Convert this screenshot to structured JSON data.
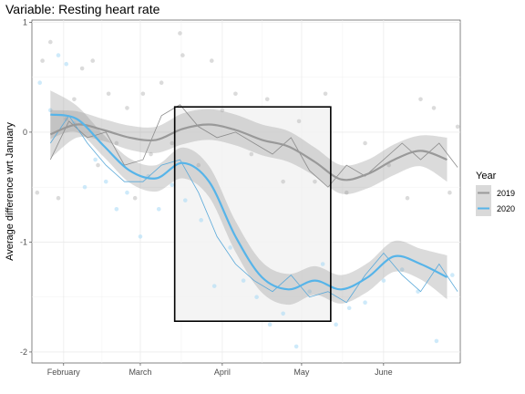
{
  "chart_data": {
    "type": "line",
    "title": "Variable: Resting heart rate",
    "xlabel": "",
    "ylabel": "Average difference wrt January",
    "x_domain": [
      "2020-01-20",
      "2020-06-30"
    ],
    "ylim": [
      -2.1,
      1.02
    ],
    "x_ticks": [
      {
        "date": "2020-02-01",
        "label": "February"
      },
      {
        "date": "2020-03-01",
        "label": "March"
      },
      {
        "date": "2020-04-01",
        "label": "April"
      },
      {
        "date": "2020-05-01",
        "label": "May"
      },
      {
        "date": "2020-06-01",
        "label": "June"
      }
    ],
    "y_ticks": [
      1,
      0,
      -1,
      -2
    ],
    "grid": true,
    "legend": {
      "title": "Year",
      "position": "right"
    },
    "highlight_box": {
      "x_start": "2020-03-14",
      "x_end": "2020-05-12",
      "y_bottom": -1.72,
      "y_top": 0.23
    },
    "series": [
      {
        "name": "2019",
        "color": "#999999",
        "smooth": {
          "dates": [
            "2020-01-27",
            "2020-02-06",
            "2020-02-16",
            "2020-02-26",
            "2020-03-07",
            "2020-03-17",
            "2020-03-27",
            "2020-04-06",
            "2020-04-16",
            "2020-04-26",
            "2020-05-06",
            "2020-05-16",
            "2020-05-26",
            "2020-06-05",
            "2020-06-15",
            "2020-06-25"
          ],
          "values": [
            -0.02,
            0.07,
            0.02,
            -0.05,
            -0.07,
            0.03,
            0.07,
            0.02,
            -0.07,
            -0.13,
            -0.27,
            -0.43,
            -0.38,
            -0.25,
            -0.17,
            -0.25
          ],
          "ci_half": [
            0.22,
            0.12,
            0.1,
            0.11,
            0.12,
            0.14,
            0.14,
            0.14,
            0.14,
            0.14,
            0.13,
            0.13,
            0.13,
            0.14,
            0.14,
            0.2
          ]
        },
        "raw": {
          "dates": [
            "2020-01-27",
            "2020-02-03",
            "2020-02-10",
            "2020-02-17",
            "2020-02-24",
            "2020-03-02",
            "2020-03-09",
            "2020-03-16",
            "2020-03-23",
            "2020-03-30",
            "2020-04-06",
            "2020-04-13",
            "2020-04-20",
            "2020-04-27",
            "2020-05-04",
            "2020-05-11",
            "2020-05-18",
            "2020-05-25",
            "2020-06-01",
            "2020-06-08",
            "2020-06-15",
            "2020-06-22",
            "2020-06-29"
          ],
          "values": [
            -0.25,
            0.1,
            -0.05,
            0.0,
            -0.3,
            -0.25,
            0.15,
            0.25,
            0.05,
            -0.05,
            0.0,
            -0.1,
            -0.2,
            -0.05,
            -0.35,
            -0.5,
            -0.3,
            -0.4,
            -0.25,
            -0.1,
            -0.25,
            -0.1,
            -0.32
          ]
        }
      },
      {
        "name": "2020",
        "color": "#56b4e9",
        "smooth": {
          "dates": [
            "2020-01-27",
            "2020-02-06",
            "2020-02-16",
            "2020-02-26",
            "2020-03-07",
            "2020-03-17",
            "2020-03-27",
            "2020-04-06",
            "2020-04-16",
            "2020-04-26",
            "2020-05-06",
            "2020-05-16",
            "2020-05-26",
            "2020-06-05",
            "2020-06-15",
            "2020-06-25"
          ],
          "values": [
            0.16,
            0.12,
            -0.12,
            -0.35,
            -0.42,
            -0.28,
            -0.45,
            -0.95,
            -1.32,
            -1.43,
            -1.35,
            -1.43,
            -1.32,
            -1.13,
            -1.2,
            -1.32
          ],
          "ci_half": [
            0.22,
            0.12,
            0.1,
            0.11,
            0.12,
            0.14,
            0.14,
            0.14,
            0.14,
            0.14,
            0.13,
            0.13,
            0.13,
            0.14,
            0.14,
            0.2
          ]
        },
        "raw": {
          "dates": [
            "2020-01-27",
            "2020-02-03",
            "2020-02-10",
            "2020-02-17",
            "2020-02-24",
            "2020-03-02",
            "2020-03-09",
            "2020-03-16",
            "2020-03-23",
            "2020-03-30",
            "2020-04-06",
            "2020-04-13",
            "2020-04-20",
            "2020-04-27",
            "2020-05-04",
            "2020-05-11",
            "2020-05-18",
            "2020-05-25",
            "2020-06-01",
            "2020-06-08",
            "2020-06-15",
            "2020-06-22",
            "2020-06-29"
          ],
          "values": [
            -0.1,
            0.15,
            -0.1,
            -0.3,
            -0.45,
            -0.45,
            -0.3,
            -0.25,
            -0.55,
            -0.95,
            -1.2,
            -1.35,
            -1.45,
            -1.3,
            -1.5,
            -1.45,
            -1.55,
            -1.3,
            -1.1,
            -1.3,
            -1.45,
            -1.2,
            -1.45
          ]
        }
      }
    ],
    "points_2019": [
      [
        "2020-01-22",
        -0.55
      ],
      [
        "2020-01-24",
        0.65
      ],
      [
        "2020-01-27",
        0.82
      ],
      [
        "2020-01-30",
        -0.6
      ],
      [
        "2020-02-02",
        0.12
      ],
      [
        "2020-02-05",
        0.3
      ],
      [
        "2020-02-08",
        0.58
      ],
      [
        "2020-02-12",
        0.65
      ],
      [
        "2020-02-14",
        -0.3
      ],
      [
        "2020-02-18",
        0.35
      ],
      [
        "2020-02-21",
        -0.1
      ],
      [
        "2020-02-25",
        0.22
      ],
      [
        "2020-02-28",
        -0.6
      ],
      [
        "2020-03-02",
        0.35
      ],
      [
        "2020-03-05",
        -0.2
      ],
      [
        "2020-03-09",
        0.45
      ],
      [
        "2020-03-13",
        -0.1
      ],
      [
        "2020-03-16",
        0.9
      ],
      [
        "2020-03-17",
        0.7
      ],
      [
        "2020-03-23",
        -0.3
      ],
      [
        "2020-03-28",
        0.65
      ],
      [
        "2020-04-01",
        0.2
      ],
      [
        "2020-04-06",
        0.35
      ],
      [
        "2020-04-12",
        -0.2
      ],
      [
        "2020-04-18",
        0.3
      ],
      [
        "2020-04-24",
        -0.45
      ],
      [
        "2020-04-30",
        0.1
      ],
      [
        "2020-05-06",
        -0.45
      ],
      [
        "2020-05-10",
        0.35
      ],
      [
        "2020-05-18",
        -0.55
      ],
      [
        "2020-05-25",
        -0.1
      ],
      [
        "2020-06-03",
        -0.3
      ],
      [
        "2020-06-10",
        -0.6
      ],
      [
        "2020-06-15",
        0.3
      ],
      [
        "2020-06-20",
        0.22
      ],
      [
        "2020-06-26",
        -0.55
      ],
      [
        "2020-06-29",
        0.05
      ]
    ],
    "points_2020": [
      [
        "2020-01-23",
        0.45
      ],
      [
        "2020-01-27",
        0.2
      ],
      [
        "2020-01-30",
        0.7
      ],
      [
        "2020-02-02",
        0.62
      ],
      [
        "2020-02-05",
        0.08
      ],
      [
        "2020-02-09",
        -0.5
      ],
      [
        "2020-02-13",
        -0.25
      ],
      [
        "2020-02-17",
        -0.45
      ],
      [
        "2020-02-21",
        -0.7
      ],
      [
        "2020-02-25",
        -0.55
      ],
      [
        "2020-03-01",
        -0.95
      ],
      [
        "2020-03-04",
        -0.4
      ],
      [
        "2020-03-08",
        -0.7
      ],
      [
        "2020-03-13",
        -0.48
      ],
      [
        "2020-03-18",
        -0.62
      ],
      [
        "2020-03-24",
        -0.8
      ],
      [
        "2020-03-29",
        -1.4
      ],
      [
        "2020-04-04",
        -1.05
      ],
      [
        "2020-04-09",
        -1.35
      ],
      [
        "2020-04-14",
        -1.5
      ],
      [
        "2020-04-19",
        -1.75
      ],
      [
        "2020-04-24",
        -1.65
      ],
      [
        "2020-04-29",
        -1.95
      ],
      [
        "2020-05-04",
        -1.45
      ],
      [
        "2020-05-09",
        -1.2
      ],
      [
        "2020-05-14",
        -1.75
      ],
      [
        "2020-05-19",
        -1.6
      ],
      [
        "2020-05-25",
        -1.55
      ],
      [
        "2020-06-01",
        -1.35
      ],
      [
        "2020-06-08",
        -1.25
      ],
      [
        "2020-06-14",
        -1.45
      ],
      [
        "2020-06-21",
        -1.9
      ],
      [
        "2020-06-27",
        -1.3
      ]
    ]
  }
}
